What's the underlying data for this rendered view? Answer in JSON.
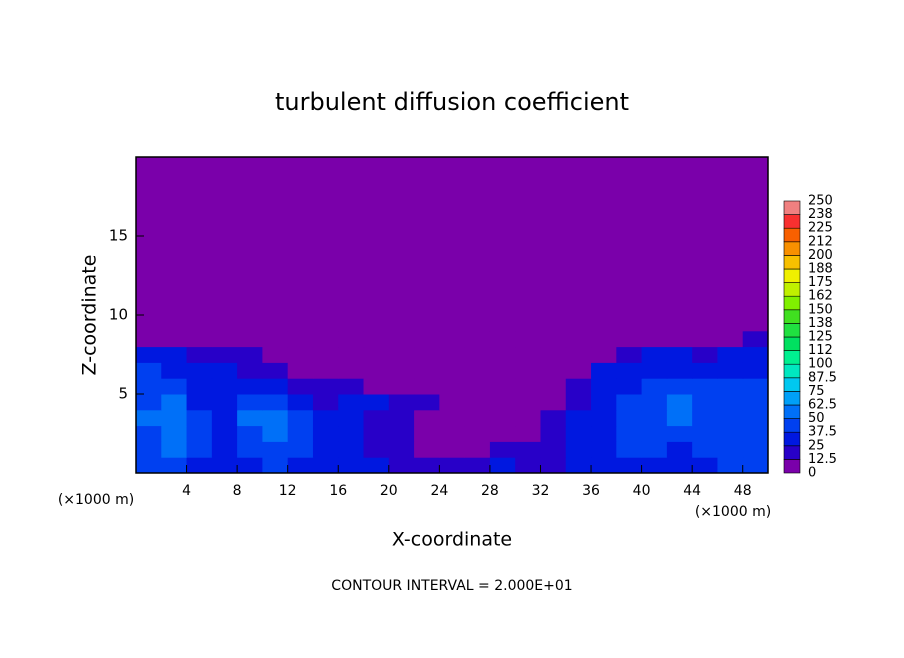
{
  "chart_data": {
    "type": "contour",
    "title": "turbulent diffusion coefficient",
    "xlabel": "X-coordinate",
    "ylabel": "Z-coordinate",
    "xunit": "(×1000 m)",
    "yunit": "(×1000 m)",
    "footer": "CONTOUR INTERVAL = 2.000E+01",
    "xlim": [
      0,
      50
    ],
    "ylim": [
      0,
      20
    ],
    "xticks": [
      4,
      8,
      12,
      16,
      20,
      24,
      28,
      32,
      36,
      40,
      44,
      48
    ],
    "yticks": [
      5,
      10,
      15
    ],
    "x_bins": [
      0,
      2,
      4,
      6,
      8,
      10,
      12,
      14,
      16,
      18,
      20,
      22,
      24,
      26,
      28,
      30,
      32,
      34,
      36,
      38,
      40,
      42,
      44,
      46,
      48,
      50
    ],
    "z_bins": [
      0,
      1,
      2,
      3,
      4,
      5,
      6,
      7,
      8,
      9,
      10,
      20
    ],
    "values": [
      [
        40,
        45,
        35,
        30,
        35,
        40,
        35,
        30,
        25,
        25,
        20,
        15,
        20,
        20,
        25,
        15,
        20,
        25,
        30,
        35,
        35,
        30,
        35,
        40,
        40
      ],
      [
        45,
        50,
        40,
        35,
        40,
        45,
        40,
        30,
        25,
        20,
        15,
        10,
        10,
        10,
        15,
        15,
        20,
        25,
        35,
        40,
        40,
        35,
        40,
        45,
        45
      ],
      [
        45,
        60,
        45,
        35,
        45,
        50,
        45,
        30,
        25,
        20,
        15,
        10,
        5,
        5,
        10,
        10,
        15,
        25,
        35,
        40,
        45,
        40,
        45,
        45,
        40
      ],
      [
        50,
        55,
        40,
        30,
        50,
        55,
        40,
        25,
        25,
        20,
        15,
        10,
        5,
        5,
        5,
        10,
        15,
        25,
        35,
        40,
        45,
        50,
        45,
        40,
        40
      ],
      [
        45,
        50,
        35,
        30,
        40,
        45,
        30,
        20,
        25,
        25,
        20,
        15,
        5,
        5,
        5,
        5,
        10,
        20,
        35,
        40,
        45,
        50,
        45,
        40,
        40
      ],
      [
        45,
        45,
        30,
        25,
        25,
        25,
        20,
        15,
        15,
        10,
        10,
        5,
        0,
        0,
        0,
        0,
        5,
        15,
        30,
        35,
        40,
        45,
        40,
        40,
        40
      ],
      [
        40,
        35,
        30,
        25,
        20,
        15,
        10,
        5,
        5,
        0,
        0,
        0,
        0,
        0,
        0,
        0,
        0,
        5,
        25,
        30,
        35,
        35,
        30,
        35,
        35
      ],
      [
        30,
        25,
        20,
        20,
        15,
        10,
        5,
        0,
        0,
        0,
        0,
        0,
        0,
        0,
        0,
        0,
        0,
        0,
        10,
        20,
        25,
        25,
        20,
        25,
        30
      ],
      [
        10,
        10,
        10,
        10,
        5,
        0,
        0,
        0,
        0,
        0,
        0,
        0,
        0,
        0,
        0,
        0,
        0,
        0,
        0,
        5,
        10,
        10,
        10,
        10,
        15
      ],
      [
        0,
        0,
        0,
        0,
        0,
        0,
        0,
        0,
        0,
        0,
        0,
        0,
        0,
        0,
        0,
        0,
        0,
        0,
        0,
        0,
        0,
        0,
        0,
        0,
        0
      ],
      [
        0,
        0,
        0,
        0,
        0,
        0,
        0,
        0,
        0,
        0,
        0,
        0,
        0,
        0,
        0,
        0,
        0,
        0,
        0,
        0,
        0,
        0,
        0,
        0,
        0
      ]
    ],
    "colorbar": {
      "levels": [
        0,
        12.5,
        25,
        37.5,
        50,
        62.5,
        75,
        87.5,
        100,
        {
          "value": 112.5,
          "label": "112"
        },
        125,
        {
          "value": 137.5,
          "label": "138"
        },
        150,
        {
          "value": 162.5,
          "label": "162"
        },
        175,
        {
          "value": 187.5,
          "label": "188"
        },
        200,
        {
          "value": 212.5,
          "label": "212"
        },
        225,
        {
          "value": 237.5,
          "label": "238"
        },
        250
      ],
      "colors": [
        "#7a00aa",
        "#2800c8",
        "#0018e0",
        "#0040f0",
        "#0070f8",
        "#00a0f8",
        "#00c8f0",
        "#00e8c0",
        "#00f090",
        "#00e060",
        "#20e040",
        "#40e020",
        "#80f000",
        "#c0f000",
        "#f0f000",
        "#f8c000",
        "#f89000",
        "#f86000",
        "#f83030",
        "#f08080"
      ]
    }
  }
}
